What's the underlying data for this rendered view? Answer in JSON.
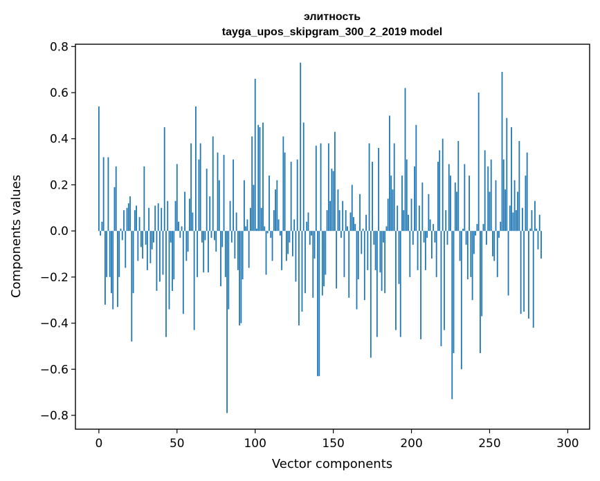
{
  "chart_data": {
    "type": "bar",
    "title": "элитность",
    "subtitle": "tayga_upos_skipgram_300_2_2019 model",
    "xlabel": "Vector components",
    "ylabel": "Components values",
    "xlim": [
      -15,
      314
    ],
    "ylim": [
      -0.86,
      0.81
    ],
    "xticks": [
      0,
      50,
      100,
      150,
      200,
      250,
      300
    ],
    "yticks": [
      -0.8,
      -0.6,
      -0.4,
      -0.2,
      0.0,
      0.2,
      0.4,
      0.6,
      0.8
    ],
    "ytick_labels": [
      "−0.8",
      "−0.6",
      "−0.4",
      "−0.2",
      "0.0",
      "0.2",
      "0.4",
      "0.6",
      "0.8"
    ],
    "grid": false,
    "bar_color": "#1f77b4",
    "values": [
      0.54,
      -0.02,
      0.04,
      0.32,
      -0.32,
      -0.2,
      0.32,
      -0.2,
      -0.27,
      -0.34,
      0.19,
      0.28,
      -0.33,
      -0.2,
      0.01,
      -0.04,
      0.09,
      -0.16,
      0.1,
      0.12,
      0.15,
      -0.48,
      -0.27,
      0.09,
      0.11,
      -0.13,
      0.06,
      -0.07,
      -0.12,
      0.28,
      -0.06,
      -0.17,
      0.1,
      -0.14,
      -0.08,
      -0.05,
      0.11,
      -0.26,
      0.12,
      -0.22,
      0.1,
      -0.19,
      0.45,
      -0.46,
      0.13,
      -0.34,
      -0.05,
      -0.26,
      -0.21,
      0.13,
      0.29,
      0.04,
      -0.03,
      0.02,
      -0.36,
      0.17,
      -0.13,
      -0.09,
      0.14,
      0.38,
      0.08,
      -0.43,
      0.54,
      -0.2,
      0.31,
      0.38,
      -0.05,
      -0.18,
      -0.04,
      0.27,
      -0.18,
      0.15,
      -0.03,
      0.41,
      -0.04,
      -0.09,
      0.34,
      0.22,
      -0.24,
      -0.07,
      0.33,
      -0.2,
      -0.79,
      -0.34,
      0.13,
      -0.05,
      0.31,
      -0.12,
      0.08,
      -0.17,
      -0.41,
      -0.4,
      -0.21,
      0.22,
      0.02,
      0.05,
      -0.16,
      0.1,
      0.41,
      0.2,
      0.66,
      0.01,
      0.46,
      0.45,
      0.1,
      0.47,
      0.02,
      -0.19,
      -0.01,
      0.24,
      -0.03,
      -0.13,
      0.09,
      0.18,
      0.22,
      0.05,
      -0.02,
      -0.17,
      0.41,
      0.34,
      -0.13,
      -0.1,
      -0.05,
      0.3,
      -0.11,
      0.05,
      -0.22,
      0.31,
      -0.41,
      0.73,
      -0.35,
      0.47,
      -0.27,
      0.04,
      0.08,
      -0.06,
      -0.02,
      -0.29,
      -0.12,
      0.37,
      -0.63,
      -0.63,
      0.38,
      -0.28,
      -0.24,
      -0.19,
      0.09,
      0.38,
      0.13,
      0.27,
      0.26,
      0.43,
      -0.25,
      0.18,
      0.09,
      -0.03,
      0.13,
      -0.2,
      0.09,
      0.02,
      -0.29,
      0.08,
      0.2,
      0.06,
      0.03,
      -0.34,
      -0.21,
      0.16,
      -0.1,
      0.01,
      -0.3,
      0.07,
      -0.17,
      0.38,
      -0.55,
      0.3,
      -0.06,
      -0.17,
      -0.46,
      0.36,
      -0.18,
      -0.26,
      -0.05,
      -0.27,
      0.02,
      0.14,
      0.5,
      0.24,
      0.18,
      0.38,
      -0.43,
      0.11,
      -0.23,
      -0.46,
      0.24,
      0.09,
      0.62,
      0.31,
      0.07,
      -0.2,
      0.14,
      -0.06,
      0.28,
      0.46,
      -0.17,
      0.11,
      -0.47,
      0.21,
      -0.05,
      -0.17,
      -0.03,
      0.16,
      0.05,
      -0.12,
      0.03,
      -0.05,
      -0.2,
      0.3,
      0.35,
      -0.5,
      0.4,
      -0.43,
      0.09,
      -0.06,
      0.29,
      0.24,
      -0.73,
      -0.53,
      0.21,
      0.17,
      0.39,
      -0.13,
      -0.6,
      0.01,
      0.29,
      -0.06,
      -0.21,
      0.24,
      -0.2,
      -0.3,
      -0.1,
      -0.02,
      0.03,
      0.6,
      -0.53,
      -0.37,
      0.03,
      0.35,
      -0.06,
      0.28,
      0.17,
      0.31,
      -0.11,
      -0.13,
      0.22,
      -0.2,
      -0.03,
      0.04,
      0.69,
      0.31,
      0.18,
      0.49,
      -0.28,
      0.11,
      0.45,
      0.08,
      0.22,
      0.09,
      0.17,
      0.39,
      -0.36,
      0.1,
      -0.35,
      0.24,
      0.34,
      -0.38,
      0.01,
      0.09,
      -0.42,
      0.13,
      0.01,
      -0.08,
      0.07,
      -0.12
    ]
  }
}
